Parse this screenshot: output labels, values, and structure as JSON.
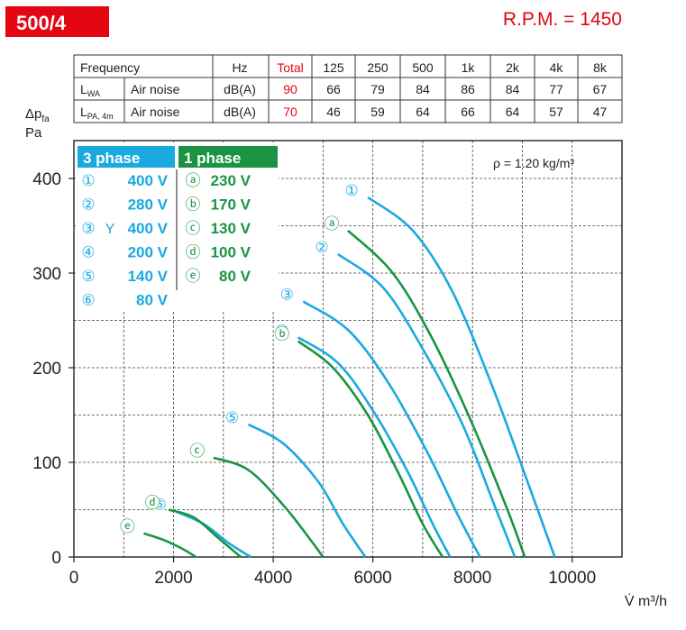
{
  "header": {
    "model": "500/4",
    "rpm": "R.P.M. = 1450",
    "model_bg_color": "#e30613",
    "rpm_color": "#e30613"
  },
  "noise_table": {
    "header": [
      "Frequency",
      "",
      "Hz",
      "Total",
      "125",
      "250",
      "500",
      "1k",
      "2k",
      "4k",
      "8k"
    ],
    "rows": [
      {
        "label": "L",
        "sub": "WA",
        "desc": "Air noise",
        "unit": "dB(A)",
        "total": "90",
        "values": [
          "66",
          "79",
          "84",
          "86",
          "84",
          "77",
          "67"
        ]
      },
      {
        "label": "L",
        "sub": "PA, 4m",
        "desc": "Air noise",
        "unit": "dB(A)",
        "total": "70",
        "values": [
          "46",
          "59",
          "64",
          "66",
          "64",
          "57",
          "47"
        ]
      }
    ]
  },
  "legend": {
    "three_phase": {
      "title": "3 phase",
      "color": "#1ba9e1",
      "items": [
        {
          "mark": "①",
          "extra": "",
          "voltage": "400 V"
        },
        {
          "mark": "②",
          "extra": "",
          "voltage": "280 V"
        },
        {
          "mark": "③",
          "extra": "Y",
          "voltage": "400 V"
        },
        {
          "mark": "④",
          "extra": "",
          "voltage": "200 V"
        },
        {
          "mark": "⑤",
          "extra": "",
          "voltage": "140 V"
        },
        {
          "mark": "⑥",
          "extra": "",
          "voltage": "80 V"
        }
      ]
    },
    "one_phase": {
      "title": "1 phase",
      "color": "#1a9443",
      "items": [
        {
          "mark": "ⓐ",
          "voltage": "230 V"
        },
        {
          "mark": "ⓑ",
          "voltage": "170 V"
        },
        {
          "mark": "ⓒ",
          "voltage": "130 V"
        },
        {
          "mark": "ⓓ",
          "voltage": "100 V"
        },
        {
          "mark": "ⓔ",
          "voltage": "80 V"
        }
      ]
    }
  },
  "density_note": "ρ = 1.20 kg/m³",
  "chart_data": {
    "type": "line",
    "xlabel": "V̇ m³/h",
    "ylabel_line1": "Δpfa",
    "ylabel_line2": "Pa",
    "xlim": [
      0,
      11000
    ],
    "ylim": [
      0,
      440
    ],
    "x_ticks": [
      0,
      2000,
      4000,
      6000,
      8000,
      10000
    ],
    "y_ticks": [
      0,
      100,
      200,
      300,
      400
    ],
    "grid": true,
    "series": [
      {
        "name": "①",
        "color": "#1ba9e1",
        "x": [
          5900,
          6800,
          7600,
          8400,
          9100,
          9650
        ],
        "y": [
          380,
          345,
          280,
          180,
          80,
          0
        ]
      },
      {
        "name": "②",
        "color": "#1ba9e1",
        "x": [
          5300,
          6200,
          7000,
          7800,
          8400,
          8850
        ],
        "y": [
          320,
          285,
          220,
          140,
          60,
          0
        ]
      },
      {
        "name": "③",
        "color": "#1ba9e1",
        "x": [
          4600,
          5500,
          6300,
          7100,
          7700,
          8150
        ],
        "y": [
          270,
          240,
          185,
          110,
          45,
          0
        ]
      },
      {
        "name": "④",
        "color": "#1ba9e1",
        "x": [
          4500,
          5300,
          6000,
          6700,
          7200,
          7550
        ],
        "y": [
          232,
          205,
          155,
          90,
          35,
          0
        ]
      },
      {
        "name": "⑤",
        "color": "#1ba9e1",
        "x": [
          3500,
          4200,
          4900,
          5400,
          5850
        ],
        "y": [
          140,
          120,
          80,
          35,
          0
        ]
      },
      {
        "name": "⑥",
        "color": "#1ba9e1",
        "x": [
          2050,
          2600,
          3100,
          3550
        ],
        "y": [
          48,
          35,
          15,
          0
        ]
      },
      {
        "name": "ⓐ",
        "color": "#1a9443",
        "x": [
          5500,
          6400,
          7200,
          8000,
          8700,
          9050
        ],
        "y": [
          345,
          300,
          230,
          140,
          50,
          0
        ]
      },
      {
        "name": "ⓑ",
        "color": "#1a9443",
        "x": [
          4500,
          5200,
          5900,
          6500,
          7000,
          7400
        ],
        "y": [
          228,
          200,
          150,
          90,
          35,
          0
        ]
      },
      {
        "name": "ⓒ",
        "color": "#1a9443",
        "x": [
          2800,
          3500,
          4200,
          4750,
          5000
        ],
        "y": [
          105,
          92,
          55,
          18,
          0
        ]
      },
      {
        "name": "ⓓ",
        "color": "#1a9443",
        "x": [
          1900,
          2400,
          2900,
          3350
        ],
        "y": [
          50,
          42,
          20,
          0
        ]
      },
      {
        "name": "ⓔ",
        "color": "#1a9443",
        "x": [
          1400,
          1800,
          2200,
          2450
        ],
        "y": [
          25,
          18,
          8,
          0
        ]
      }
    ]
  }
}
